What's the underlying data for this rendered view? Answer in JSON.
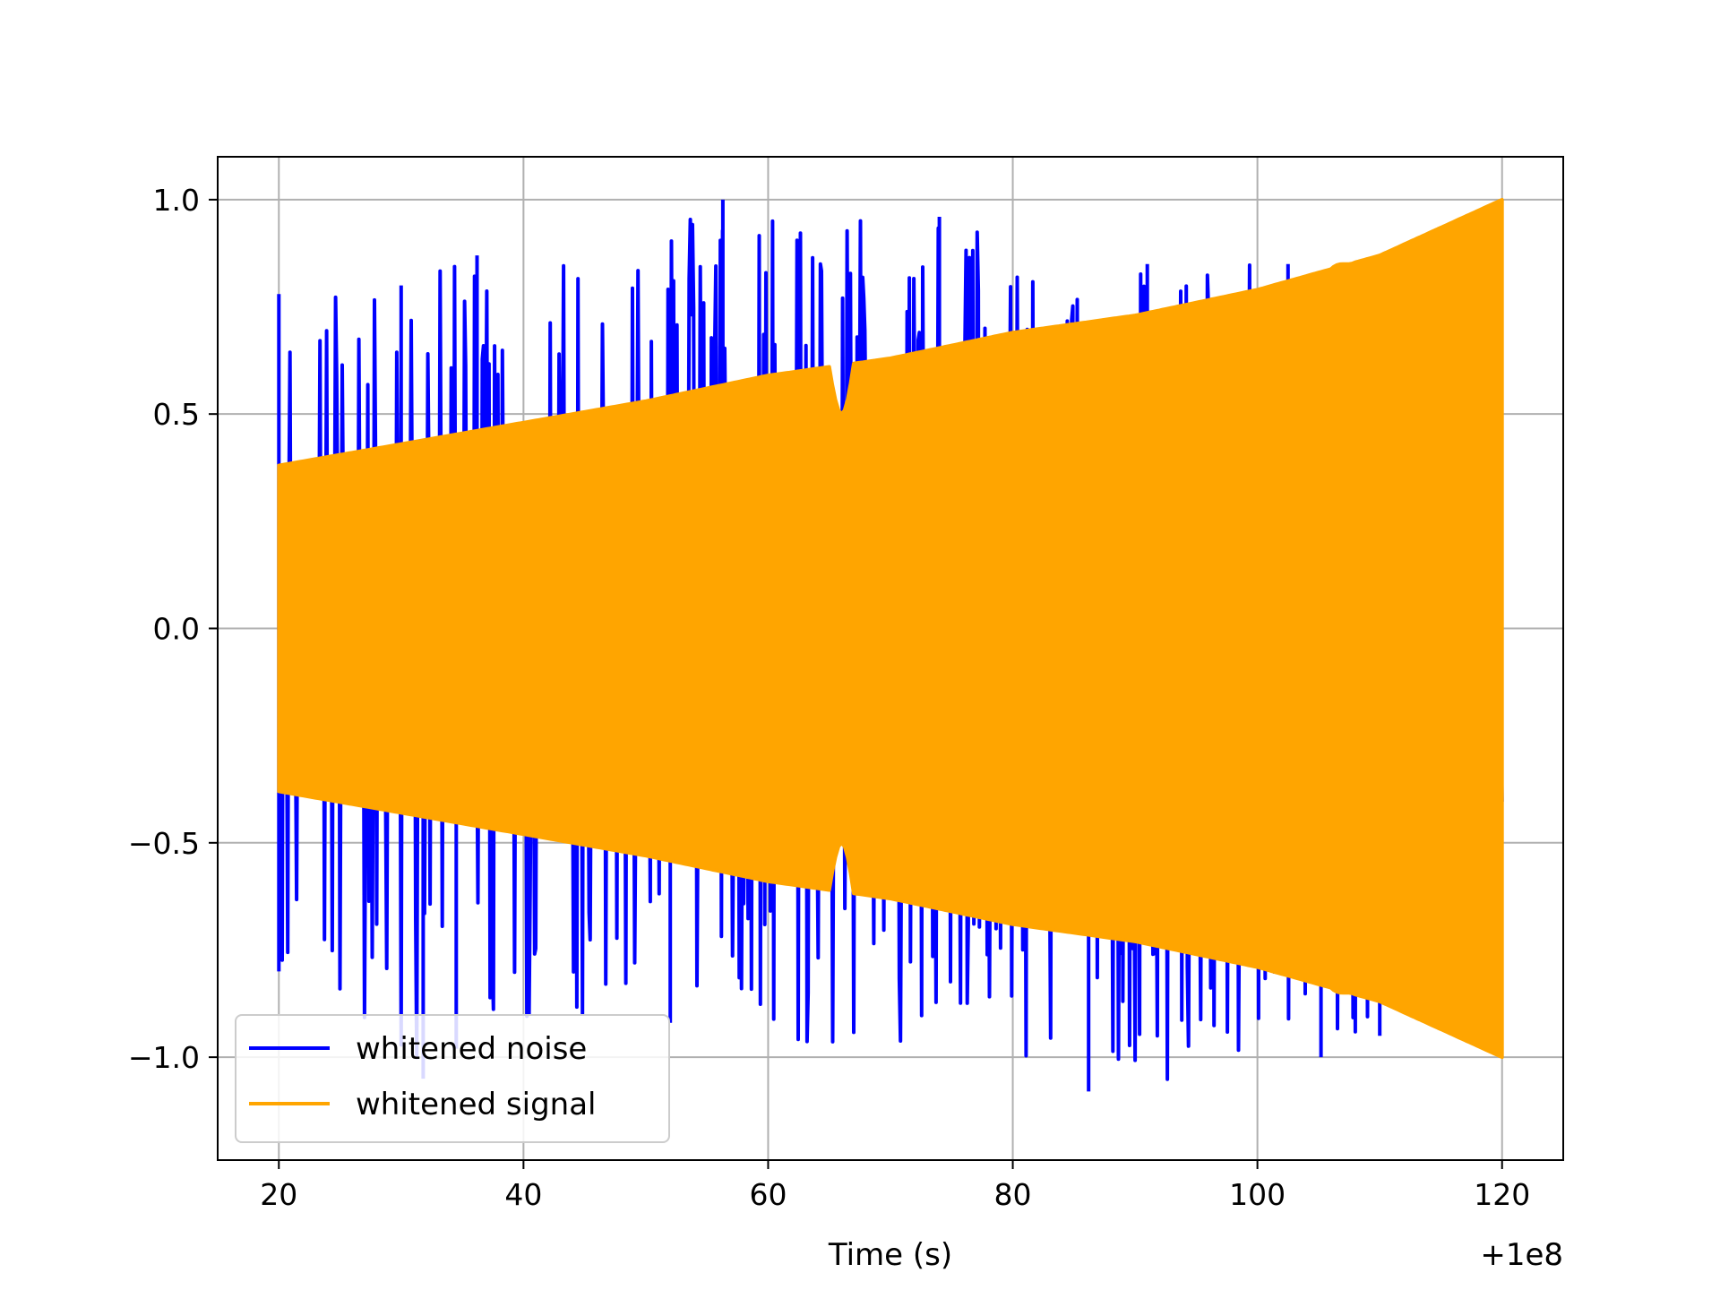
{
  "chart_data": {
    "type": "line",
    "title": "",
    "xlabel": "Time (s)",
    "ylabel": "",
    "x_offset_label": "+1e8",
    "xlim": [
      15,
      125
    ],
    "ylim": [
      -1.24,
      1.1
    ],
    "x_ticks": [
      20,
      40,
      60,
      80,
      100,
      120
    ],
    "x_tick_labels": [
      "20",
      "40",
      "60",
      "80",
      "100",
      "120"
    ],
    "y_ticks": [
      -1.0,
      -0.5,
      0.0,
      0.5,
      1.0
    ],
    "y_tick_labels": [
      "−1.0",
      "−0.5",
      "0.0",
      "0.5",
      "1.0"
    ],
    "grid": true,
    "legend_position": "lower-left",
    "series": [
      {
        "name": "whitened noise",
        "color": "#0000ff",
        "x_range": [
          20,
          120
        ],
        "base_envelope": [
          [
            20,
            0.38
          ],
          [
            120,
            0.58
          ]
        ],
        "spike_max": [
          [
            20,
            0.78
          ],
          [
            30,
            0.8
          ],
          [
            36.2,
            0.87
          ],
          [
            56.3,
            1.0
          ],
          [
            74,
            0.96
          ],
          [
            91,
            0.85
          ],
          [
            102.5,
            0.85
          ],
          [
            110,
            0.7
          ]
        ],
        "spike_min": [
          [
            20,
            -0.8
          ],
          [
            31.8,
            -1.05
          ],
          [
            34.5,
            -0.98
          ],
          [
            52,
            -0.92
          ],
          [
            86.2,
            -1.08
          ],
          [
            105.2,
            -1.0
          ],
          [
            110,
            -0.95
          ]
        ]
      },
      {
        "name": "whitened signal",
        "color": "#ffa500",
        "x_range": [
          20,
          120
        ],
        "envelope": [
          [
            20,
            0.38
          ],
          [
            30,
            0.43
          ],
          [
            40,
            0.48
          ],
          [
            50,
            0.53
          ],
          [
            60,
            0.59
          ],
          [
            70,
            0.63
          ],
          [
            80,
            0.69
          ],
          [
            90,
            0.73
          ],
          [
            100,
            0.79
          ],
          [
            110,
            0.87
          ],
          [
            120,
            1.0
          ]
        ],
        "dips": [
          [
            65,
            0.5
          ],
          [
            67,
            0.5
          ],
          [
            106,
            0.85
          ],
          [
            108,
            0.85
          ]
        ]
      }
    ]
  }
}
